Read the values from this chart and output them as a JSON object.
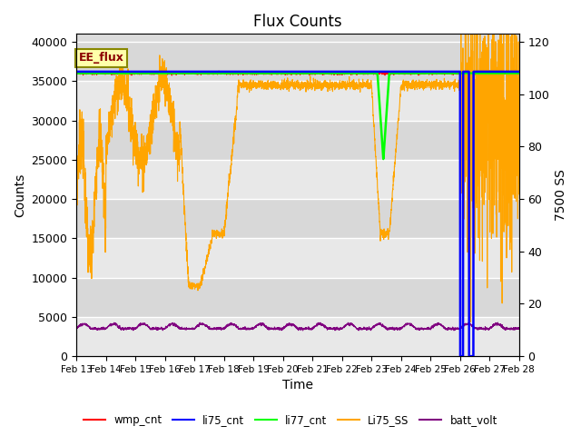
{
  "title": "Flux Counts",
  "xlabel": "Time",
  "ylabel_left": "Counts",
  "ylabel_right": "7500 SS",
  "annotation": "EE_flux",
  "ylim_left": [
    0,
    41000
  ],
  "ylim_right": [
    0,
    123
  ],
  "background_color": "#e8e8e8",
  "legend_entries": [
    "wmp_cnt",
    "li75_cnt",
    "li77_cnt",
    "Li75_SS",
    "batt_volt"
  ],
  "legend_colors": [
    "red",
    "blue",
    "lime",
    "orange",
    "purple"
  ],
  "date_start": 13,
  "date_end": 28,
  "month": "Feb",
  "yticks_left": [
    0,
    5000,
    10000,
    15000,
    20000,
    25000,
    30000,
    35000,
    40000
  ],
  "yticks_right": [
    0,
    20,
    40,
    60,
    80,
    100,
    120
  ],
  "figsize": [
    6.4,
    4.8
  ],
  "dpi": 100
}
